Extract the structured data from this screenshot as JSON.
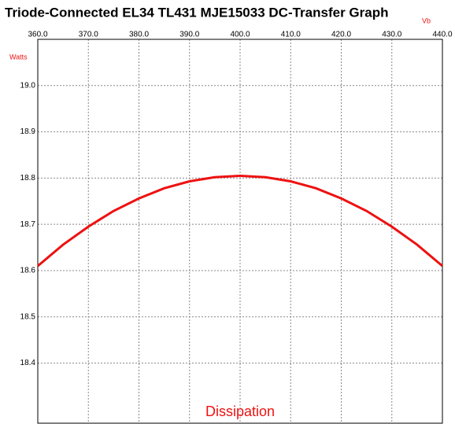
{
  "chart_data": {
    "type": "line",
    "title": "Triode-Connected EL34 TL431 MJE15033 DC-Transfer Graph",
    "x_label": "Vb",
    "y_label": "Watts",
    "caption": "Dissipation",
    "x": [
      360,
      365,
      370,
      375,
      380,
      385,
      390,
      395,
      400,
      405,
      410,
      415,
      420,
      425,
      430,
      435,
      440
    ],
    "series": [
      {
        "name": "Dissipation",
        "color": "#ee1111",
        "values": [
          18.61,
          18.656,
          18.695,
          18.729,
          18.756,
          18.778,
          18.793,
          18.802,
          18.805,
          18.802,
          18.793,
          18.778,
          18.756,
          18.729,
          18.695,
          18.656,
          18.61
        ]
      }
    ],
    "xlim": [
      360,
      440
    ],
    "xticks": [
      {
        "value": 360,
        "label": "360.0"
      },
      {
        "value": 370,
        "label": "370.0"
      },
      {
        "value": 380,
        "label": "380.0"
      },
      {
        "value": 390,
        "label": "390.0"
      },
      {
        "value": 400,
        "label": "400.0"
      },
      {
        "value": 410,
        "label": "410.0"
      },
      {
        "value": 420,
        "label": "420.0"
      },
      {
        "value": 430,
        "label": "430.0"
      },
      {
        "value": 440,
        "label": "440.0"
      }
    ],
    "ylim": [
      18.27,
      19.1
    ],
    "yticks": [
      18.4,
      18.5,
      18.6,
      18.7,
      18.8,
      18.9,
      {
        "value": 19,
        "label": "19.0"
      }
    ],
    "grid": true
  }
}
